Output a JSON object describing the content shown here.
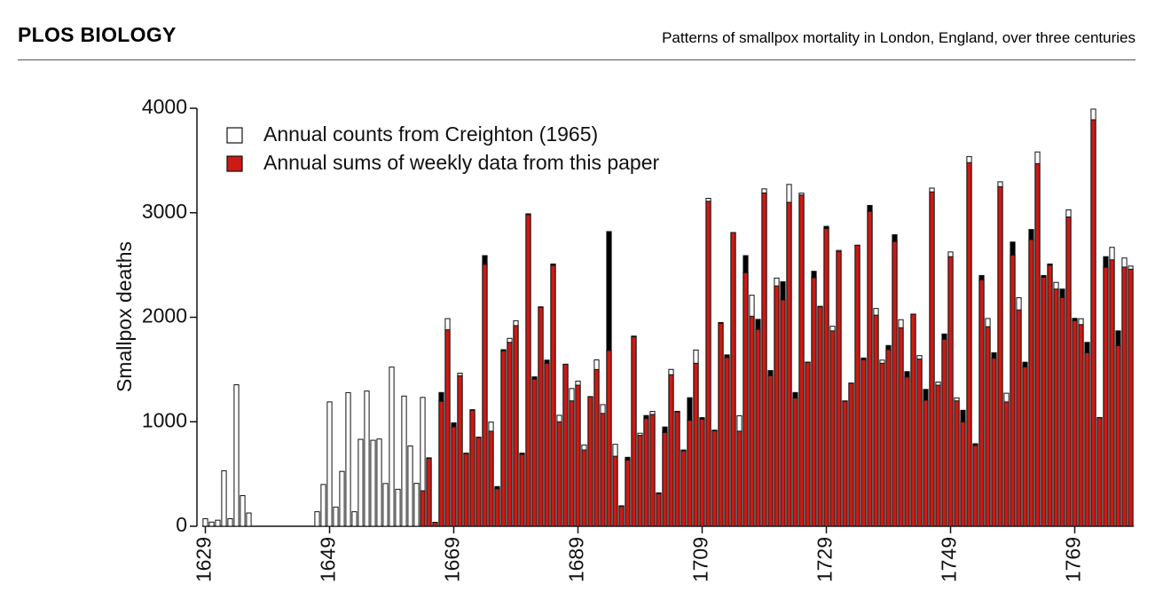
{
  "header": {
    "journal": "PLOS BIOLOGY",
    "title": "Patterns of smallpox mortality in London, England, over three centuries"
  },
  "chart_data": {
    "type": "bar",
    "ylabel": "Smallpox deaths",
    "x": [
      1629,
      1630,
      1631,
      1632,
      1633,
      1634,
      1635,
      1636,
      1637,
      1638,
      1639,
      1640,
      1641,
      1642,
      1643,
      1644,
      1645,
      1646,
      1647,
      1648,
      1649,
      1650,
      1651,
      1652,
      1653,
      1654,
      1655,
      1656,
      1657,
      1658,
      1659,
      1660,
      1661,
      1662,
      1663,
      1664,
      1665,
      1666,
      1667,
      1668,
      1669,
      1670,
      1671,
      1672,
      1673,
      1674,
      1675,
      1676,
      1677,
      1678,
      1679,
      1680,
      1681,
      1682,
      1683,
      1684,
      1685,
      1686,
      1687,
      1688,
      1689,
      1690,
      1691,
      1692,
      1693,
      1694,
      1695,
      1696,
      1697,
      1698,
      1699,
      1700,
      1701,
      1702,
      1703,
      1704,
      1705,
      1706,
      1707,
      1708,
      1709,
      1710,
      1711,
      1712,
      1713,
      1714,
      1715,
      1716,
      1717,
      1718,
      1719,
      1720,
      1721,
      1722,
      1723,
      1724,
      1725,
      1726,
      1727,
      1728,
      1729,
      1730,
      1731,
      1732,
      1733,
      1734,
      1735,
      1736,
      1737,
      1738,
      1739,
      1740,
      1741,
      1742,
      1743,
      1744,
      1745,
      1746,
      1747,
      1748,
      1749,
      1750,
      1751,
      1752,
      1753,
      1754,
      1755,
      1756,
      1757,
      1758,
      1759,
      1760,
      1761,
      1762,
      1763,
      1764,
      1765,
      1766,
      1767,
      1768,
      1769,
      1770,
      1771,
      1772,
      1773,
      1774,
      1775,
      1776,
      1777,
      1778
    ],
    "series": [
      {
        "name": "Annual counts from Creighton (1965)",
        "color": "#ffffff",
        "values": [
          72,
          40,
          58,
          531,
          72,
          1354,
          293,
          127,
          null,
          null,
          null,
          null,
          null,
          null,
          null,
          null,
          null,
          null,
          139,
          400,
          1190,
          184,
          525,
          1279,
          139,
          832,
          1294,
          823,
          835,
          409,
          1523,
          354,
          1246,
          768,
          411,
          1233,
          655,
          38,
          1196,
          1987,
          951,
          1465,
          696,
          1116,
          853,
          2507,
          997,
          359,
          1678,
          1798,
          1967,
          689,
          2982,
          1408,
          2096,
          1560,
          2496,
          1062,
          1551,
          1318,
          1389,
          778,
          1241,
          1592,
          1164,
          1683,
          784,
          196,
          634,
          1813,
          890,
          1031,
          1099,
          311,
          898,
          1501,
          1095,
          721,
          1014,
          1687,
          1024,
          3138,
          915,
          1943,
          1614,
          2810,
          1057,
          2427,
          2211,
          1884,
          3229,
          1440,
          2375,
          2167,
          3271,
          1227,
          3188,
          1569,
          2379,
          2105,
          2849,
          1914,
          2640,
          1197,
          1370,
          2688,
          1594,
          3014,
          2084,
          1590,
          1690,
          2725,
          1977,
          1429,
          2029,
          1633,
          1206,
          3236,
          1380,
          1789,
          2625,
          1229,
          998,
          3538,
          774,
          2359,
          1988,
          1608,
          3296,
          1273,
          2596,
          2187,
          1525,
          2743,
          3582,
          2382,
          2498,
          2334,
          2188,
          3028,
          1968,
          1986,
          1660,
          3992,
          1039,
          2479,
          2669,
          1728,
          2567,
          2490
        ]
      },
      {
        "name": "Annual sums of weekly data from this paper",
        "color": "#cc1a14",
        "values": [
          null,
          null,
          null,
          null,
          null,
          null,
          null,
          null,
          null,
          null,
          null,
          null,
          null,
          null,
          null,
          null,
          null,
          null,
          null,
          null,
          null,
          null,
          null,
          null,
          null,
          null,
          null,
          null,
          null,
          null,
          null,
          null,
          null,
          null,
          null,
          340,
          650,
          38,
          1280,
          1880,
          990,
          1440,
          700,
          1110,
          850,
          2590,
          910,
          380,
          1690,
          1760,
          1920,
          700,
          2990,
          1430,
          2100,
          1590,
          2510,
          1000,
          1550,
          1200,
          1350,
          730,
          1240,
          1500,
          1080,
          2820,
          670,
          190,
          660,
          1820,
          870,
          1060,
          1070,
          320,
          950,
          1450,
          1100,
          730,
          1230,
          1560,
          1040,
          3110,
          920,
          1950,
          1640,
          2810,
          910,
          2590,
          2010,
          1980,
          3190,
          1490,
          2300,
          2340,
          3100,
          1280,
          3170,
          1570,
          2440,
          2100,
          2870,
          1870,
          2630,
          1200,
          1370,
          2690,
          1610,
          3070,
          2020,
          1560,
          1730,
          2790,
          1900,
          1480,
          2030,
          1600,
          1310,
          3200,
          1350,
          1840,
          2580,
          1200,
          1110,
          3480,
          790,
          2400,
          1910,
          1660,
          3250,
          1190,
          2720,
          2070,
          1570,
          2840,
          3470,
          2400,
          2510,
          2270,
          2270,
          2960,
          1990,
          1930,
          1760,
          3890,
          1040,
          2580,
          2550,
          1870,
          2480,
          2460
        ]
      }
    ],
    "xlim": [
      1628.5,
      1778.5
    ],
    "xticks": [
      1629,
      1649,
      1669,
      1689,
      1709,
      1729,
      1749,
      1769
    ],
    "ylim": [
      0,
      4000
    ],
    "yticks": [
      0,
      1000,
      2000,
      3000,
      4000
    ],
    "grid": false,
    "legend": "upper left"
  }
}
